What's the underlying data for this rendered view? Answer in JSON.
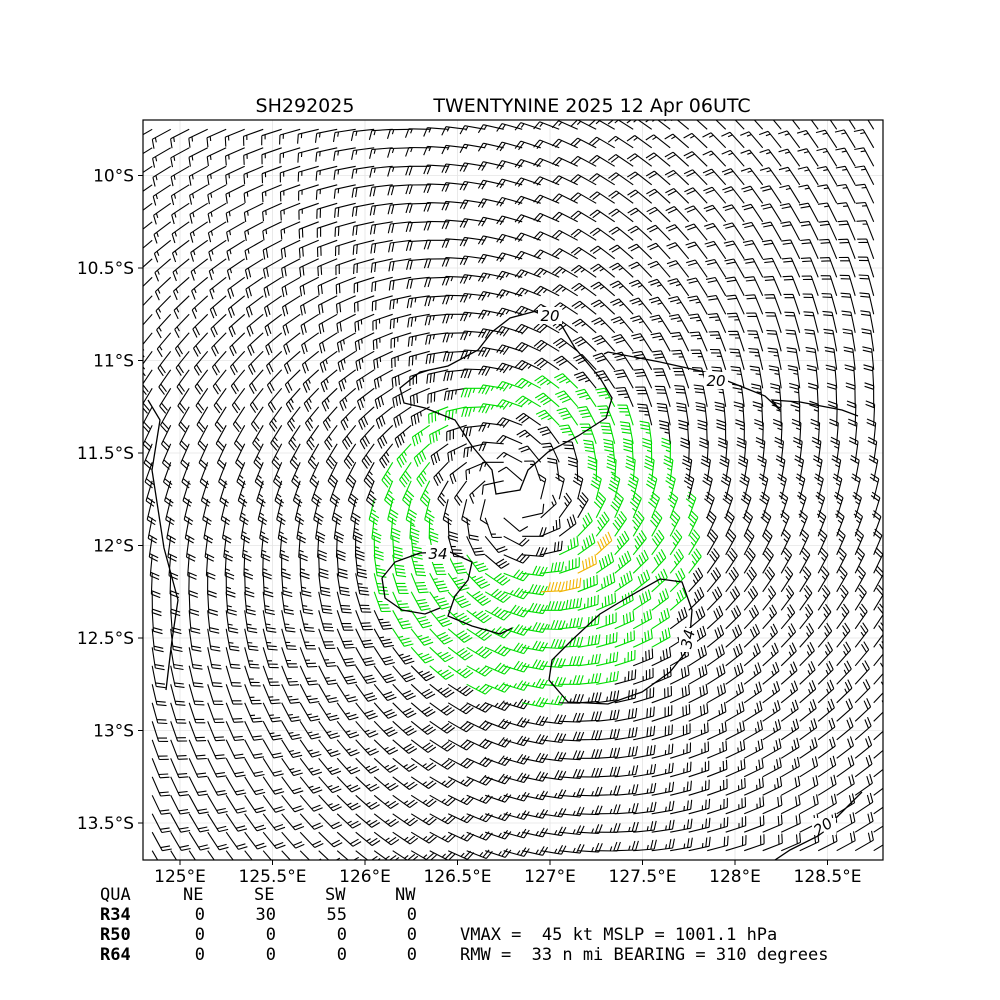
{
  "title": {
    "storm_id": "SH292025",
    "storm_name_time": "TWENTYNINE 2025 12 Apr 06UTC"
  },
  "colors": {
    "below_34kt": "#000000",
    "gale_34_50kt": "#00dd00",
    "storm_50_64kt": "#f0b400",
    "contour": "#000000",
    "grid": "#e4e4e4"
  },
  "chart_data": {
    "type": "wind-barb map",
    "x_axis": {
      "range": [
        124.8,
        128.8
      ],
      "ticks": [
        "125°E",
        "125.5°E",
        "126°E",
        "126.5°E",
        "127°E",
        "127.5°E",
        "128°E",
        "128.5°E"
      ],
      "tick_values": [
        125,
        125.5,
        126,
        126.5,
        127,
        127.5,
        128,
        128.5
      ]
    },
    "y_axis": {
      "range": [
        -13.7,
        -9.7
      ],
      "ticks": [
        "10°S",
        "10.5°S",
        "11°S",
        "11.5°S",
        "12°S",
        "12.5°S",
        "13°S",
        "13.5°S"
      ],
      "tick_values": [
        -10,
        -10.5,
        -11,
        -11.5,
        -12,
        -12.5,
        -13,
        -13.5
      ]
    },
    "grid": true,
    "hemisphere": "southern (clockwise circulation)",
    "center": {
      "lon": 126.8,
      "lat": -11.75
    },
    "barb_spacing_deg": 0.1,
    "color_thresholds_kt": [
      34,
      50
    ],
    "contours": [
      {
        "level": 20,
        "label": "20"
      },
      {
        "level": 20,
        "label": "20"
      },
      {
        "level": 34,
        "label": "34"
      },
      {
        "level": 34,
        "label": "34"
      },
      {
        "level": 20,
        "label": "20"
      }
    ]
  },
  "radii_table": {
    "header": [
      "QUA",
      "NE",
      "SE",
      "SW",
      "NW"
    ],
    "rows": [
      {
        "label": "R34",
        "values": [
          "0",
          "30",
          "55",
          "0"
        ]
      },
      {
        "label": "R50",
        "values": [
          "0",
          "0",
          "0",
          "0"
        ]
      },
      {
        "label": "R64",
        "values": [
          "0",
          "0",
          "0",
          "0"
        ]
      }
    ]
  },
  "summary": {
    "line1": "VMAX =  45 kt MSLP = 1001.1 hPa",
    "line2": "RMW =  33 n mi BEARING = 310 degrees"
  }
}
